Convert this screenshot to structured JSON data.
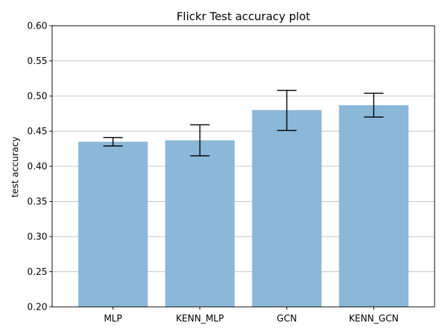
{
  "chart_data": {
    "type": "bar",
    "title": "Flickr Test accuracy plot",
    "xlabel": "",
    "ylabel": "test accuracy",
    "categories": [
      "MLP",
      "KENN_MLP",
      "GCN",
      "KENN_GCN"
    ],
    "values": [
      0.435,
      0.437,
      0.48,
      0.487
    ],
    "error_low": [
      0.429,
      0.415,
      0.451,
      0.47
    ],
    "error_high": [
      0.441,
      0.459,
      0.508,
      0.504
    ],
    "ylim": [
      0.2,
      0.6
    ],
    "yticks": [
      "0.20",
      "0.25",
      "0.30",
      "0.35",
      "0.40",
      "0.45",
      "0.50",
      "0.55",
      "0.60"
    ],
    "grid": "horizontal",
    "bar_color": "#8bb8d8",
    "bar_opacity": 1,
    "error_color": "#000000"
  }
}
